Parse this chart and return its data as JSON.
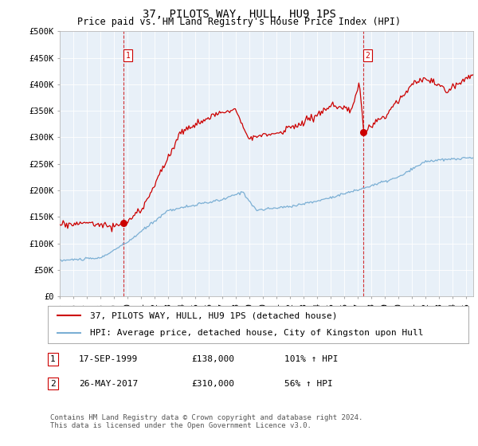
{
  "title": "37, PILOTS WAY, HULL, HU9 1PS",
  "subtitle": "Price paid vs. HM Land Registry's House Price Index (HPI)",
  "ylabel_ticks": [
    "£0",
    "£50K",
    "£100K",
    "£150K",
    "£200K",
    "£250K",
    "£300K",
    "£350K",
    "£400K",
    "£450K",
    "£500K"
  ],
  "ytick_values": [
    0,
    50000,
    100000,
    150000,
    200000,
    250000,
    300000,
    350000,
    400000,
    450000,
    500000
  ],
  "ylim": [
    0,
    500000
  ],
  "xlim_start": 1995.0,
  "xlim_end": 2025.5,
  "red_color": "#cc0000",
  "blue_color": "#7bafd4",
  "point1_x": 1999.72,
  "point1_y": 138000,
  "point2_x": 2017.4,
  "point2_y": 310000,
  "vline1_x": 1999.72,
  "vline2_x": 2017.4,
  "legend_entry1": "37, PILOTS WAY, HULL, HU9 1PS (detached house)",
  "legend_entry2": "HPI: Average price, detached house, City of Kingston upon Hull",
  "table_row1_num": "1",
  "table_row1_date": "17-SEP-1999",
  "table_row1_price": "£138,000",
  "table_row1_hpi": "101% ↑ HPI",
  "table_row2_num": "2",
  "table_row2_date": "26-MAY-2017",
  "table_row2_price": "£310,000",
  "table_row2_hpi": "56% ↑ HPI",
  "footer": "Contains HM Land Registry data © Crown copyright and database right 2024.\nThis data is licensed under the Open Government Licence v3.0.",
  "background_color": "#ffffff",
  "plot_bg_color": "#e8f0f8",
  "grid_color": "#ffffff",
  "title_fontsize": 10,
  "subtitle_fontsize": 8.5,
  "tick_fontsize": 7.5,
  "legend_fontsize": 8,
  "table_fontsize": 8,
  "footer_fontsize": 6.5
}
